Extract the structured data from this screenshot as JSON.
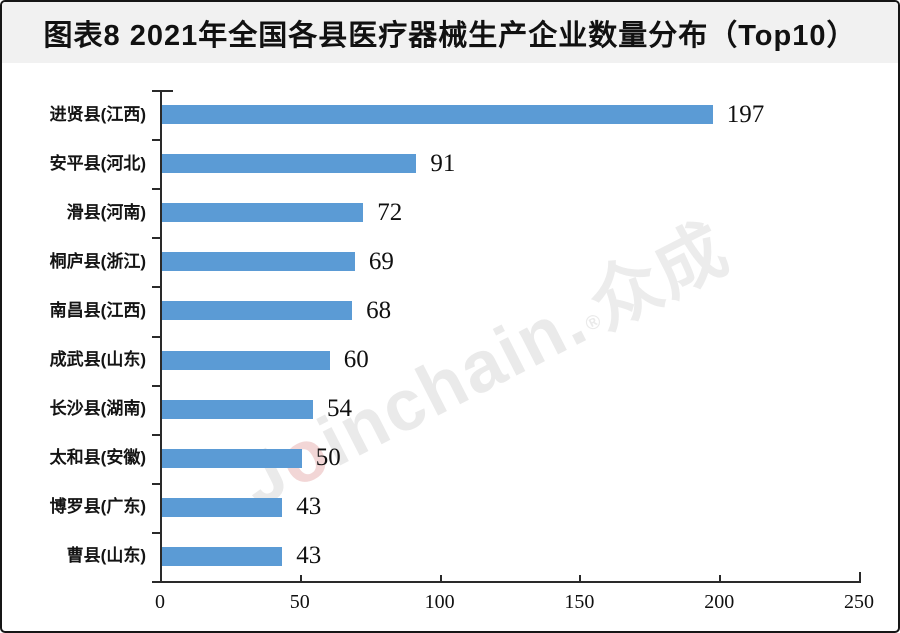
{
  "page": {
    "title": "图表8 2021年全国各县医疗器械生产企业数量分布（Top10）"
  },
  "watermark": {
    "j": "J",
    "o": "o",
    "rest": "inchain.",
    "reg": "®",
    "cjk": "众成",
    "color": "#eaeaea",
    "accent": "#f2d6d6"
  },
  "chart_data": {
    "type": "bar",
    "orientation": "horizontal",
    "title": "图表8 2021年全国各县医疗器械生产企业数量分布（Top10）",
    "categories": [
      "进贤县(江西)",
      "安平县(河北)",
      "滑县(河南)",
      "桐庐县(浙江)",
      "南昌县(江西)",
      "成武县(山东)",
      "长沙县(湖南)",
      "太和县(安徽)",
      "博罗县(广东)",
      "曹县(山东)"
    ],
    "values": [
      197,
      91,
      72,
      69,
      68,
      60,
      54,
      50,
      43,
      43
    ],
    "xlabel": "",
    "ylabel": "",
    "xlim": [
      0,
      250
    ],
    "x_ticks": [
      0,
      50,
      100,
      150,
      200,
      250
    ],
    "bar_color": "#5B9BD5",
    "axis_color": "#2a2a2a",
    "grid": false,
    "legend": false,
    "value_labels": true
  }
}
